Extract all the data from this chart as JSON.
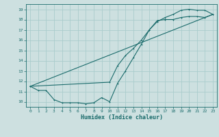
{
  "xlabel": "Humidex (Indice chaleur)",
  "bg_color": "#cde0e0",
  "grid_color": "#aacccc",
  "line_color": "#1a6b6b",
  "xlim": [
    -0.5,
    23.5
  ],
  "ylim": [
    9.5,
    19.5
  ],
  "xticks": [
    0,
    1,
    2,
    3,
    4,
    5,
    6,
    7,
    8,
    9,
    10,
    11,
    12,
    13,
    14,
    15,
    16,
    17,
    18,
    19,
    20,
    21,
    22,
    23
  ],
  "yticks": [
    10,
    11,
    12,
    13,
    14,
    15,
    16,
    17,
    18,
    19
  ],
  "line1_x": [
    0,
    1,
    2,
    3,
    4,
    5,
    6,
    7,
    8,
    9,
    10,
    11,
    12,
    13,
    14,
    15,
    16,
    17,
    18,
    19,
    20,
    21,
    22,
    23
  ],
  "line1_y": [
    11.5,
    11.1,
    11.1,
    10.2,
    9.9,
    9.9,
    9.9,
    9.8,
    9.9,
    10.4,
    10.0,
    11.8,
    13.0,
    14.3,
    15.6,
    17.0,
    17.9,
    18.0,
    18.0,
    18.2,
    18.3,
    18.3,
    18.2,
    18.5
  ],
  "line2_x": [
    0,
    10,
    11,
    12,
    13,
    14,
    15,
    16,
    17,
    18,
    19,
    20,
    21,
    22,
    23
  ],
  "line2_y": [
    11.5,
    11.9,
    13.5,
    14.5,
    15.2,
    16.0,
    17.0,
    17.8,
    18.2,
    18.5,
    18.9,
    19.0,
    18.9,
    18.9,
    18.5
  ],
  "line3_x": [
    0,
    23
  ],
  "line3_y": [
    11.5,
    18.5
  ]
}
